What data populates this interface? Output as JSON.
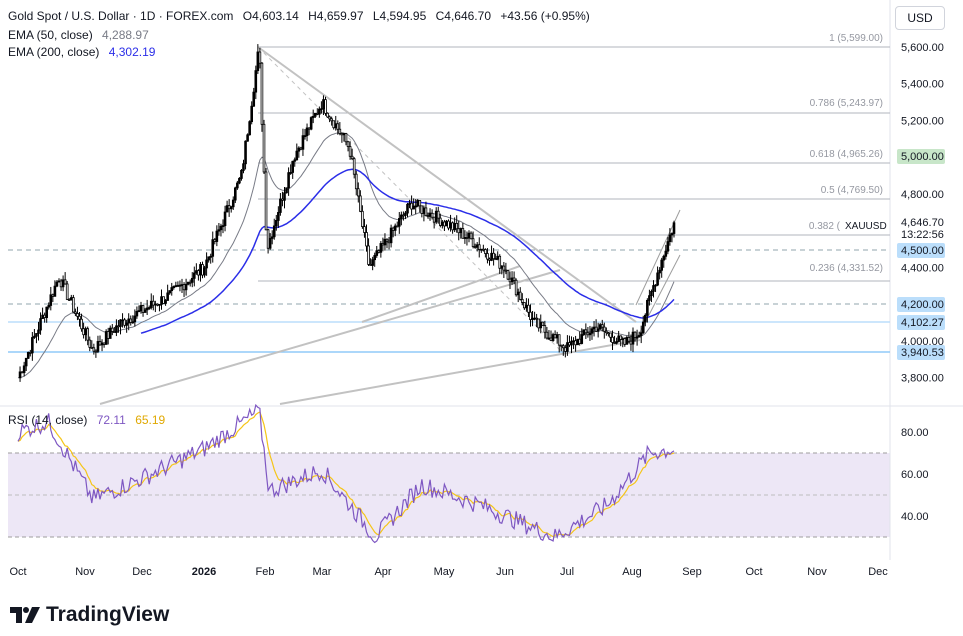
{
  "header": {
    "symbol": "Gold Spot / U.S. Dollar · 1D · FOREX.com",
    "open": "O4,603.14",
    "high": "H4,659.97",
    "low": "L4,594.95",
    "close": "C4,646.70",
    "change": "+43.56 (+0.95%)",
    "ema50_label": "EMA (50, close)",
    "ema50_value": "4,288.97",
    "ema200_label": "EMA (200, close)",
    "ema200_value": "4,302.19",
    "rsi_label": "RSI (14, close)",
    "rsi_value": "72.11",
    "rsi_ma_value": "65.19"
  },
  "currency_button": "USD",
  "branding": {
    "logo_text": "TradingView"
  },
  "colors": {
    "up": "#000000",
    "down": "#ffffff",
    "ema50": "#787b86",
    "ema200": "#2b2ee8",
    "rsi": "#7e57c2",
    "rsi_ma": "#f5c518",
    "level_blue": "#bbdefb",
    "level_green": "#c8e6c9",
    "trendline": "#c2c2c2"
  },
  "chart_data": {
    "type": "candlestick",
    "x_tick_labels": [
      "Oct",
      "Nov",
      "Dec",
      "2026",
      "Feb",
      "Mar",
      "Apr",
      "May",
      "Jun",
      "Jul",
      "Aug",
      "Sep",
      "Oct",
      "Nov",
      "Dec"
    ],
    "y_tick_labels": [
      "5,600.00",
      "5,400.00",
      "5,200.00",
      "4,800.00",
      "4,400.00",
      "4,000.00",
      "3,800.00"
    ],
    "ylim": [
      3700,
      5700
    ],
    "price_series_key_points": [
      {
        "date": "Oct",
        "close": 3800
      },
      {
        "date": "Oct 20",
        "close": 4350
      },
      {
        "date": "Nov 5",
        "close": 3950
      },
      {
        "date": "Nov 20",
        "close": 4100
      },
      {
        "date": "Dec 15",
        "close": 4250
      },
      {
        "date": "2026",
        "close": 4400
      },
      {
        "date": "Jan 20",
        "close": 4900
      },
      {
        "date": "Jan 29",
        "close": 5599
      },
      {
        "date": "Feb 2",
        "close": 4500
      },
      {
        "date": "Feb 15",
        "close": 5000
      },
      {
        "date": "Mar 1",
        "close": 5300
      },
      {
        "date": "Mar 15",
        "close": 5050
      },
      {
        "date": "Mar 25",
        "close": 4400
      },
      {
        "date": "Apr 15",
        "close": 4750
      },
      {
        "date": "May 1",
        "close": 4650
      },
      {
        "date": "May 15",
        "close": 4550
      },
      {
        "date": "Jun 1",
        "close": 4400
      },
      {
        "date": "Jun 15",
        "close": 4100
      },
      {
        "date": "Jul 1",
        "close": 3960
      },
      {
        "date": "Jul 15",
        "close": 4080
      },
      {
        "date": "Jul 28",
        "close": 3980
      },
      {
        "date": "Aug 5",
        "close": 4050
      },
      {
        "date": "Aug 15",
        "close": 4400
      },
      {
        "date": "Aug 23",
        "close": 4646.7
      }
    ],
    "fib_levels": [
      {
        "ratio": "1",
        "value": "5,599.00"
      },
      {
        "ratio": "0.786",
        "value": "5,243.97"
      },
      {
        "ratio": "0.618",
        "value": "4,965.26"
      },
      {
        "ratio": "0.5",
        "value": "4,769.50"
      },
      {
        "ratio": "0.382",
        "value": "4,573.74"
      },
      {
        "ratio": "0.236",
        "value": "4,331.52"
      }
    ],
    "price_labels": [
      {
        "text": "5,000.00",
        "style": "green"
      },
      {
        "text": "4,646.70",
        "style": "plain"
      },
      {
        "text": "XAUUSD",
        "style": "plain"
      },
      {
        "text": "13:22:56",
        "style": "plain"
      },
      {
        "text": "4,500.00",
        "style": "blue"
      },
      {
        "text": "4,200.00",
        "style": "blue"
      },
      {
        "text": "4,102.27",
        "style": "blue"
      },
      {
        "text": "3,940.53",
        "style": "blue"
      }
    ],
    "rsi_y_tick_labels": [
      "80.00",
      "60.00",
      "40.00"
    ],
    "rsi_ylim": [
      25,
      95
    ],
    "rsi_band": [
      30,
      70
    ],
    "rsi_series_key_points": [
      {
        "date": "Oct",
        "rsi": 80
      },
      {
        "date": "Oct 15",
        "rsi": 85
      },
      {
        "date": "Nov 5",
        "rsi": 48
      },
      {
        "date": "Dec 1",
        "rsi": 58
      },
      {
        "date": "Jan 1",
        "rsi": 72
      },
      {
        "date": "Jan 29",
        "rsi": 90
      },
      {
        "date": "Feb 3",
        "rsi": 52
      },
      {
        "date": "Mar 1",
        "rsi": 62
      },
      {
        "date": "Mar 28",
        "rsi": 30
      },
      {
        "date": "Apr 20",
        "rsi": 55
      },
      {
        "date": "May 20",
        "rsi": 45
      },
      {
        "date": "Jun 25",
        "rsi": 30
      },
      {
        "date": "Jul 20",
        "rsi": 45
      },
      {
        "date": "Aug 10",
        "rsi": 70
      },
      {
        "date": "Aug 23",
        "rsi": 72
      }
    ]
  }
}
